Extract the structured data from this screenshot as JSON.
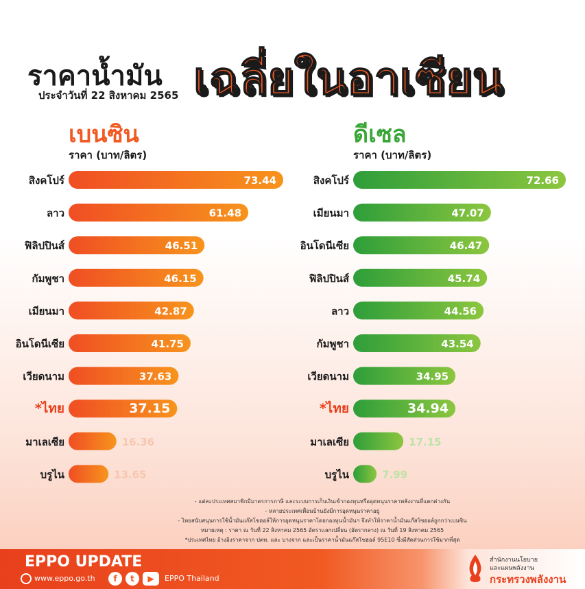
{
  "header": {
    "title_left": "ราคาน้ำมัน",
    "title_right": "เฉลี่ยในอาเซียน",
    "subtitle": "ประจำวันที่ 22 สิงหาคม 2565"
  },
  "colors": {
    "benzin": "#f15a22",
    "diesel": "#3aa637",
    "thai_label": "#e8401c"
  },
  "chart_data": [
    {
      "type": "bar",
      "title": "เบนซิน",
      "ylabel": "ราคา (บาท/ลิตร)",
      "categories": [
        "สิงคโปร์",
        "ลาว",
        "ฟิลิปปินส์",
        "กัมพูชา",
        "เมียนมา",
        "อินโดนีเซีย",
        "เวียดนาม",
        "*ไทย",
        "มาเลเซีย",
        "บรูไน"
      ],
      "values": [
        73.44,
        61.48,
        46.51,
        46.15,
        42.87,
        41.75,
        37.63,
        37.15,
        16.36,
        13.65
      ],
      "labels": [
        "73.44",
        "61.48",
        "46.51",
        "46.15",
        "42.87",
        "41.75",
        "37.63",
        "37.15",
        "16.36",
        "13.65"
      ],
      "highlight": "*ไทย",
      "xlim": [
        0,
        73.44
      ]
    },
    {
      "type": "bar",
      "title": "ดีเซล",
      "ylabel": "ราคา (บาท/ลิตร)",
      "categories": [
        "สิงคโปร์",
        "เมียนมา",
        "อินโดนีเซีย",
        "ฟิลิปปินส์",
        "ลาว",
        "กัมพูชา",
        "เวียดนาม",
        "*ไทย",
        "มาเลเซีย",
        "บรูไน"
      ],
      "values": [
        72.66,
        47.07,
        46.47,
        45.74,
        44.56,
        43.54,
        34.95,
        34.94,
        17.15,
        7.99
      ],
      "labels": [
        "72.66",
        "47.07",
        "46.47",
        "45.74",
        "44.56",
        "43.54",
        "34.95",
        "34.94",
        "17.15",
        "7.99"
      ],
      "highlight": "*ไทย",
      "xlim": [
        0,
        72.66
      ]
    }
  ],
  "notes": [
    "- แต่ละประเทศสมาชิกมีมาตรการภาษี และระบบการเก็บเงินเข้ากองทุนหรืออุดหนุนราคาพลังงานที่แตกต่างกัน",
    "- หลายประเทศเพื่อนบ้านยังมีการอุดหนุนราคาอยู่",
    "- ไทยสนับสนุนการใช้น้ำมันแก๊สโซฮอล์ให้การอุดหนุนราคาโดยกองทุนน้ำมันฯ จึงทำให้ราคาน้ำมันแก๊สโซฮอล์ถูกกว่าเบนซิน",
    "หมายเหตุ : ราคา ณ วันที่ 22 สิงหาคม 2565 อัตราแลกเปลี่ยน (อัตรากลาง) ณ วันที่ 19 สิงหาคม 2565",
    "*ประเทศไทย อ้างอิงราคาจาก ปตท. และ บางจาก และเป็นราคาน้ำมันแก๊สโซฮอล์ 95E10 ซึ่งมีสัดส่วนการใช้มากที่สุด"
  ],
  "footer": {
    "brand": "EPPO UPDATE",
    "website": "www.eppo.go.th",
    "social_name": "EPPO Thailand",
    "icons": [
      "globe-icon",
      "facebook-icon",
      "twitter-icon",
      "youtube-icon"
    ],
    "org_line1": "สำนักงานนโยบาย",
    "org_line2": "และแผนพลังงาน",
    "org_line3": "กระทรวงพลังงาน"
  }
}
